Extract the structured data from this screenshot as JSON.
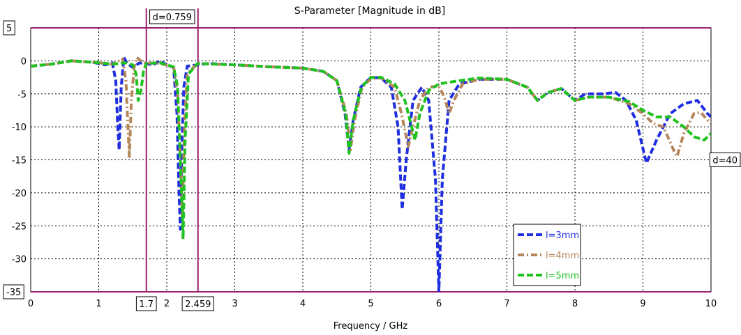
{
  "chart_data": {
    "type": "line",
    "title": "S-Parameter [Magnitude in dB]",
    "xlabel": "Frequency / GHz",
    "ylabel": "",
    "xlim": [
      0,
      10
    ],
    "ylim": [
      -35,
      5
    ],
    "x_ticks": [
      "0",
      "1",
      "2",
      "3",
      "4",
      "5",
      "6",
      "7",
      "8",
      "9",
      "10"
    ],
    "y_ticks": [
      "0",
      "-5",
      "-10",
      "-15",
      "-20",
      "-25",
      "-30"
    ],
    "grid": true,
    "legend_position": "bottom-right",
    "markers": {
      "h_top": "5",
      "h_bottom": "-35",
      "v_left": "1.7",
      "v_right": "2.459",
      "delta_x": "d=0.759",
      "delta_y": "d=40"
    },
    "series": [
      {
        "name": "l=3mm",
        "color": "#1f2fe0",
        "style": "dash",
        "points": [
          [
            0,
            -0.8
          ],
          [
            0.3,
            -0.5
          ],
          [
            0.6,
            0.0
          ],
          [
            0.9,
            -0.2
          ],
          [
            1.1,
            -0.6
          ],
          [
            1.2,
            -0.3
          ],
          [
            1.25,
            -3
          ],
          [
            1.28,
            -10
          ],
          [
            1.3,
            -13.5
          ],
          [
            1.33,
            -4
          ],
          [
            1.37,
            0.5
          ],
          [
            1.42,
            -0.4
          ],
          [
            1.5,
            -1
          ],
          [
            1.6,
            -0.3
          ],
          [
            1.8,
            -0.6
          ],
          [
            1.9,
            0
          ],
          [
            2.0,
            -0.6
          ],
          [
            2.1,
            -1
          ],
          [
            2.15,
            -8
          ],
          [
            2.18,
            -20
          ],
          [
            2.2,
            -25.5
          ],
          [
            2.22,
            -14
          ],
          [
            2.25,
            -4
          ],
          [
            2.3,
            -0.8
          ],
          [
            2.6,
            -0.4
          ],
          [
            3.0,
            -0.6
          ],
          [
            3.5,
            -0.9
          ],
          [
            4.0,
            -1.1
          ],
          [
            4.3,
            -1.6
          ],
          [
            4.5,
            -3
          ],
          [
            4.62,
            -8
          ],
          [
            4.68,
            -13.5
          ],
          [
            4.74,
            -9
          ],
          [
            4.85,
            -4
          ],
          [
            5.0,
            -2.5
          ],
          [
            5.15,
            -2.6
          ],
          [
            5.3,
            -4
          ],
          [
            5.4,
            -10
          ],
          [
            5.46,
            -22.5
          ],
          [
            5.52,
            -15
          ],
          [
            5.62,
            -6
          ],
          [
            5.75,
            -4
          ],
          [
            5.85,
            -6
          ],
          [
            5.95,
            -18
          ],
          [
            6.0,
            -35
          ],
          [
            6.05,
            -18
          ],
          [
            6.15,
            -6
          ],
          [
            6.3,
            -3.5
          ],
          [
            6.6,
            -2.8
          ],
          [
            7.0,
            -2.8
          ],
          [
            7.3,
            -4
          ],
          [
            7.45,
            -6
          ],
          [
            7.6,
            -4.8
          ],
          [
            7.8,
            -4.2
          ],
          [
            8.0,
            -6
          ],
          [
            8.15,
            -5
          ],
          [
            8.4,
            -5
          ],
          [
            8.6,
            -4.8
          ],
          [
            8.75,
            -6
          ],
          [
            8.9,
            -9
          ],
          [
            9.05,
            -15.5
          ],
          [
            9.2,
            -12
          ],
          [
            9.4,
            -8
          ],
          [
            9.6,
            -6.5
          ],
          [
            9.8,
            -6
          ],
          [
            9.95,
            -8
          ],
          [
            10,
            -8.5
          ]
        ]
      },
      {
        "name": "l=4mm",
        "color": "#b5865a",
        "style": "dashdot",
        "points": [
          [
            0,
            -0.8
          ],
          [
            0.3,
            -0.5
          ],
          [
            0.6,
            0.0
          ],
          [
            0.9,
            -0.2
          ],
          [
            1.2,
            -0.5
          ],
          [
            1.35,
            0.3
          ],
          [
            1.4,
            -3
          ],
          [
            1.43,
            -10
          ],
          [
            1.45,
            -14.5
          ],
          [
            1.48,
            -6
          ],
          [
            1.52,
            -1
          ],
          [
            1.56,
            0.5
          ],
          [
            1.65,
            -0.3
          ],
          [
            1.9,
            -0.4
          ],
          [
            2.1,
            -0.9
          ],
          [
            2.16,
            -5
          ],
          [
            2.2,
            -15
          ],
          [
            2.23,
            -24
          ],
          [
            2.26,
            -10
          ],
          [
            2.3,
            -2
          ],
          [
            2.45,
            -0.4
          ],
          [
            3.0,
            -0.6
          ],
          [
            3.5,
            -0.9
          ],
          [
            4.0,
            -1.1
          ],
          [
            4.3,
            -1.6
          ],
          [
            4.5,
            -3
          ],
          [
            4.64,
            -8
          ],
          [
            4.7,
            -13.5
          ],
          [
            4.76,
            -9
          ],
          [
            4.87,
            -4
          ],
          [
            5.0,
            -2.7
          ],
          [
            5.15,
            -2.6
          ],
          [
            5.35,
            -4
          ],
          [
            5.45,
            -8
          ],
          [
            5.55,
            -13
          ],
          [
            5.62,
            -10
          ],
          [
            5.72,
            -6
          ],
          [
            5.85,
            -4
          ],
          [
            6.0,
            -3.8
          ],
          [
            6.08,
            -5.5
          ],
          [
            6.15,
            -8
          ],
          [
            6.22,
            -6
          ],
          [
            6.35,
            -3.5
          ],
          [
            6.6,
            -2.8
          ],
          [
            7.0,
            -2.8
          ],
          [
            7.3,
            -4
          ],
          [
            7.45,
            -6
          ],
          [
            7.6,
            -4.8
          ],
          [
            7.8,
            -4.2
          ],
          [
            8.0,
            -6
          ],
          [
            8.2,
            -5.5
          ],
          [
            8.5,
            -5.5
          ],
          [
            8.8,
            -6.5
          ],
          [
            9.0,
            -8
          ],
          [
            9.15,
            -9.5
          ],
          [
            9.3,
            -10
          ],
          [
            9.45,
            -13.5
          ],
          [
            9.5,
            -14.5
          ],
          [
            9.6,
            -11
          ],
          [
            9.75,
            -8
          ],
          [
            9.85,
            -7.8
          ],
          [
            9.95,
            -9
          ],
          [
            10,
            -9.5
          ]
        ]
      },
      {
        "name": "l=5mm",
        "color": "#1fc21f",
        "style": "dash",
        "points": [
          [
            0,
            -0.8
          ],
          [
            0.3,
            -0.5
          ],
          [
            0.6,
            0.0
          ],
          [
            0.9,
            -0.2
          ],
          [
            1.2,
            -0.5
          ],
          [
            1.4,
            -0.3
          ],
          [
            1.5,
            -0.6
          ],
          [
            1.55,
            -2
          ],
          [
            1.58,
            -6
          ],
          [
            1.62,
            -4.5
          ],
          [
            1.66,
            -1.5
          ],
          [
            1.7,
            -0.4
          ],
          [
            1.9,
            -0.3
          ],
          [
            2.1,
            -0.9
          ],
          [
            2.16,
            -4
          ],
          [
            2.2,
            -15
          ],
          [
            2.24,
            -27
          ],
          [
            2.27,
            -12
          ],
          [
            2.32,
            -2
          ],
          [
            2.45,
            -0.4
          ],
          [
            3.0,
            -0.6
          ],
          [
            3.5,
            -0.9
          ],
          [
            4.0,
            -1.1
          ],
          [
            4.3,
            -1.6
          ],
          [
            4.5,
            -3
          ],
          [
            4.63,
            -8
          ],
          [
            4.68,
            -14
          ],
          [
            4.74,
            -9
          ],
          [
            4.86,
            -4
          ],
          [
            5.0,
            -2.5
          ],
          [
            5.15,
            -2.5
          ],
          [
            5.35,
            -3.5
          ],
          [
            5.5,
            -6
          ],
          [
            5.6,
            -10
          ],
          [
            5.65,
            -12
          ],
          [
            5.72,
            -8
          ],
          [
            5.85,
            -4.5
          ],
          [
            6.0,
            -3.5
          ],
          [
            6.3,
            -3
          ],
          [
            6.6,
            -2.6
          ],
          [
            7.0,
            -2.8
          ],
          [
            7.3,
            -4
          ],
          [
            7.45,
            -6
          ],
          [
            7.6,
            -4.8
          ],
          [
            7.8,
            -4.2
          ],
          [
            8.0,
            -6
          ],
          [
            8.2,
            -5.5
          ],
          [
            8.5,
            -5.5
          ],
          [
            8.8,
            -6.2
          ],
          [
            9.0,
            -7.5
          ],
          [
            9.2,
            -8.5
          ],
          [
            9.4,
            -8.5
          ],
          [
            9.6,
            -10
          ],
          [
            9.75,
            -11.5
          ],
          [
            9.9,
            -12
          ],
          [
            10,
            -11
          ]
        ]
      }
    ]
  }
}
